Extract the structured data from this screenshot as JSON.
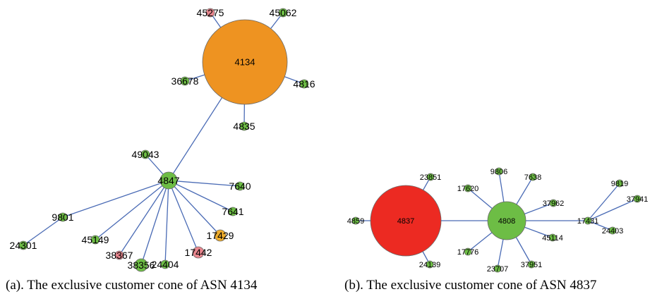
{
  "colors": {
    "green": "#6dbd45",
    "orange": "#ee9321",
    "red": "#ec2a22",
    "pink": "#e8868e",
    "amber": "#eeac2c",
    "edge": "#4a6bb5"
  },
  "graph_a": {
    "caption": "(a). The exclusive customer cone of ASN 4134",
    "nodes": [
      {
        "id": "4134",
        "color": "orange"
      },
      {
        "id": "45275",
        "color": "pink"
      },
      {
        "id": "45062",
        "color": "green"
      },
      {
        "id": "36678",
        "color": "green"
      },
      {
        "id": "4816",
        "color": "green"
      },
      {
        "id": "4835",
        "color": "green"
      },
      {
        "id": "4847",
        "color": "green"
      },
      {
        "id": "49043",
        "color": "green"
      },
      {
        "id": "7640",
        "color": "green"
      },
      {
        "id": "7641",
        "color": "green"
      },
      {
        "id": "17429",
        "color": "amber"
      },
      {
        "id": "17442",
        "color": "pink"
      },
      {
        "id": "24404",
        "color": "green"
      },
      {
        "id": "38356",
        "color": "green"
      },
      {
        "id": "38367",
        "color": "pink"
      },
      {
        "id": "45149",
        "color": "green"
      },
      {
        "id": "9801",
        "color": "green"
      },
      {
        "id": "24301",
        "color": "green"
      }
    ],
    "edges": [
      [
        "4134",
        "45275"
      ],
      [
        "4134",
        "45062"
      ],
      [
        "4134",
        "36678"
      ],
      [
        "4134",
        "4816"
      ],
      [
        "4134",
        "4835"
      ],
      [
        "4134",
        "4847"
      ],
      [
        "4847",
        "49043"
      ],
      [
        "4847",
        "7640"
      ],
      [
        "4847",
        "7641"
      ],
      [
        "4847",
        "17429"
      ],
      [
        "4847",
        "17442"
      ],
      [
        "4847",
        "24404"
      ],
      [
        "4847",
        "38356"
      ],
      [
        "4847",
        "38367"
      ],
      [
        "4847",
        "45149"
      ],
      [
        "4847",
        "9801"
      ],
      [
        "9801",
        "24301"
      ]
    ]
  },
  "graph_b": {
    "caption": "(b). The exclusive customer cone of ASN 4837",
    "nodes": [
      {
        "id": "4837",
        "color": "red"
      },
      {
        "id": "23851",
        "color": "green"
      },
      {
        "id": "4859",
        "color": "green"
      },
      {
        "id": "24139",
        "color": "green"
      },
      {
        "id": "4808",
        "color": "green"
      },
      {
        "id": "9806",
        "color": "green"
      },
      {
        "id": "7638",
        "color": "green"
      },
      {
        "id": "17620",
        "color": "green"
      },
      {
        "id": "37962",
        "color": "green"
      },
      {
        "id": "17776",
        "color": "green"
      },
      {
        "id": "45114",
        "color": "green"
      },
      {
        "id": "23707",
        "color": "green"
      },
      {
        "id": "37951",
        "color": "green"
      },
      {
        "id": "17431",
        "color": "green"
      },
      {
        "id": "9819",
        "color": "green"
      },
      {
        "id": "37941",
        "color": "green"
      },
      {
        "id": "24403",
        "color": "green"
      }
    ],
    "edges": [
      [
        "4837",
        "23851"
      ],
      [
        "4837",
        "4859"
      ],
      [
        "4837",
        "24139"
      ],
      [
        "4837",
        "4808"
      ],
      [
        "4808",
        "9806"
      ],
      [
        "4808",
        "7638"
      ],
      [
        "4808",
        "17620"
      ],
      [
        "4808",
        "37962"
      ],
      [
        "4808",
        "17776"
      ],
      [
        "4808",
        "45114"
      ],
      [
        "4808",
        "23707"
      ],
      [
        "4808",
        "37951"
      ],
      [
        "4808",
        "17431"
      ],
      [
        "17431",
        "9819"
      ],
      [
        "17431",
        "37941"
      ],
      [
        "17431",
        "24403"
      ]
    ]
  }
}
